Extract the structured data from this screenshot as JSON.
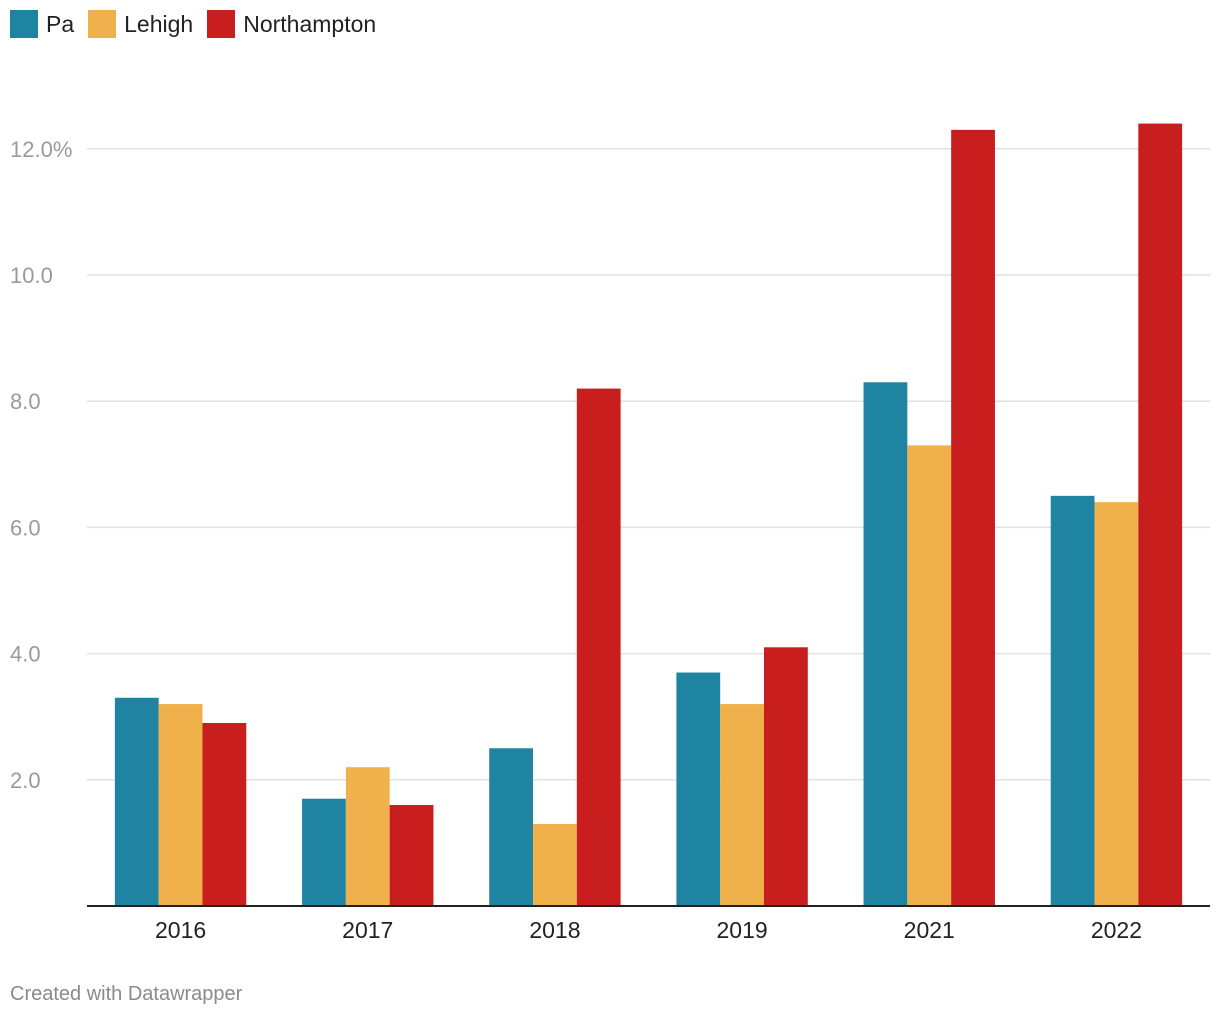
{
  "chart_data": {
    "type": "bar",
    "categories": [
      "2016",
      "2017",
      "2018",
      "2019",
      "2021",
      "2022"
    ],
    "series": [
      {
        "name": "Pa",
        "color": "#1f83a2",
        "values": [
          3.3,
          1.7,
          2.5,
          3.7,
          8.3,
          6.5
        ]
      },
      {
        "name": "Lehigh",
        "color": "#f0b04c",
        "values": [
          3.2,
          2.2,
          1.3,
          3.2,
          7.3,
          6.4
        ]
      },
      {
        "name": "Northampton",
        "color": "#c81e1e",
        "values": [
          2.9,
          1.6,
          8.2,
          4.1,
          12.3,
          12.4
        ]
      }
    ],
    "yticks": [
      {
        "value": 2,
        "label": "2.0"
      },
      {
        "value": 4,
        "label": "4.0"
      },
      {
        "value": 6,
        "label": "6.0"
      },
      {
        "value": 8,
        "label": "8.0"
      },
      {
        "value": 10,
        "label": "10.0"
      },
      {
        "value": 12,
        "label": "12.0%"
      }
    ],
    "ylim": [
      0,
      12.4
    ],
    "grid": true,
    "legend_position": "top-left"
  },
  "footer": {
    "credit": "Created with Datawrapper"
  }
}
